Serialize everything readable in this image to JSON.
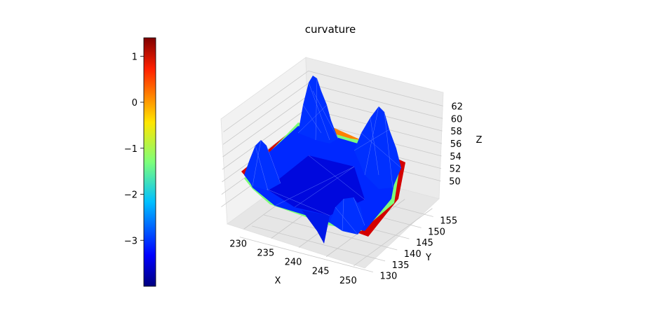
{
  "chart_data": {
    "type": "surface3d",
    "title": "curvature",
    "xlabel": "X",
    "ylabel": "Y",
    "zlabel": "Z",
    "x_ticks": [
      "230",
      "235",
      "240",
      "245",
      "250"
    ],
    "y_ticks": [
      "130",
      "135",
      "140",
      "145",
      "150",
      "155"
    ],
    "z_ticks": [
      "50",
      "52",
      "54",
      "56",
      "58",
      "60",
      "62"
    ],
    "xlim": [
      228,
      252
    ],
    "ylim": [
      128,
      158
    ],
    "zlim": [
      48.5,
      63.5
    ],
    "colorbar": {
      "colormap": "jet",
      "ticks": [
        "1",
        "0",
        "−1",
        "−2",
        "−3"
      ],
      "range": [
        -4,
        1.4
      ]
    },
    "surface_colors": {
      "main": "#0028ff",
      "dark": "#0000cc",
      "rim_green": "#7dff7a",
      "rim_red": "#d40000",
      "rim_orange": "#ff8000"
    },
    "grid": true
  }
}
